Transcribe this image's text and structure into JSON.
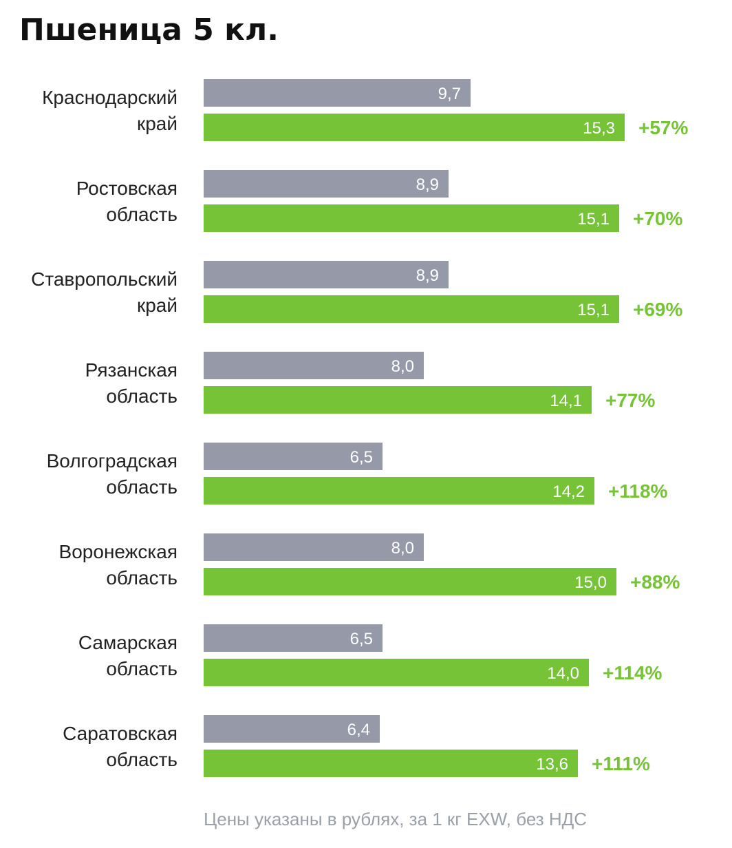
{
  "title": "Пшеница 5 кл.",
  "footnote": "Цены указаны в рублях, за 1 кг EXW, без НДС",
  "colors": {
    "gray_bar": "#969aa8",
    "green_bar": "#76c337",
    "bar_label": "#ffffff",
    "pct_label": "#76c337",
    "category_label": "#222222"
  },
  "chart_data": {
    "type": "bar",
    "orientation": "horizontal",
    "categories": [
      [
        "Краснодарский",
        "край"
      ],
      [
        "Ростовская",
        "область"
      ],
      [
        "Ставропольский",
        "край"
      ],
      [
        "Рязанская",
        "область"
      ],
      [
        "Волгоградская",
        "область"
      ],
      [
        "Воронежская",
        "область"
      ],
      [
        "Самарская",
        "область"
      ],
      [
        "Саратовская",
        "область"
      ]
    ],
    "series": [
      {
        "color": "#969aa8",
        "values": [
          9.7,
          8.9,
          8.9,
          8.0,
          6.5,
          8.0,
          6.5,
          6.4
        ],
        "labels": [
          "9,7",
          "8,9",
          "8,9",
          "8,0",
          "6,5",
          "8,0",
          "6,5",
          "6,4"
        ]
      },
      {
        "color": "#76c337",
        "values": [
          15.3,
          15.1,
          15.1,
          14.1,
          14.2,
          15.0,
          14.0,
          13.6
        ],
        "labels": [
          "15,3",
          "15,1",
          "15,1",
          "14,1",
          "14,2",
          "15,0",
          "14,0",
          "13,6"
        ]
      }
    ],
    "changes": [
      "+57%",
      "+70%",
      "+69%",
      "+77%",
      "+118%",
      "+88%",
      "+114%",
      "+111%"
    ],
    "grid": false,
    "legend": "none"
  }
}
